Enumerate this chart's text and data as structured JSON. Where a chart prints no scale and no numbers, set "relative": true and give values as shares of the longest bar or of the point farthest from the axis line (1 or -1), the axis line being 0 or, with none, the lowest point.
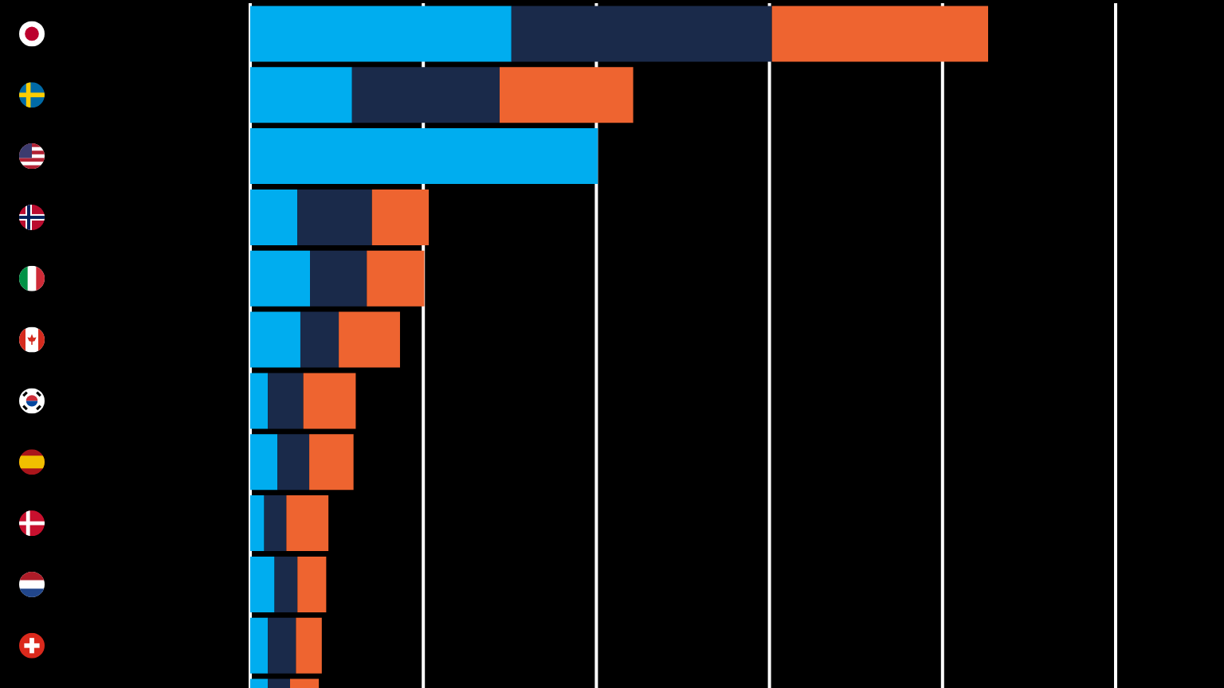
{
  "chart_data": {
    "type": "bar",
    "orientation": "horizontal",
    "stacked": true,
    "relative": true,
    "grid": "x",
    "categories": [
      null,
      null,
      null,
      null,
      null,
      null,
      null,
      null,
      null,
      null,
      null,
      null
    ],
    "series": [
      {
        "color": "#00adef",
        "values": [
          0.354,
          0.138,
          0.471,
          0.064,
          0.081,
          0.068,
          0.024,
          0.037,
          0.019,
          0.033,
          0.024,
          0.024
        ]
      },
      {
        "color": "#1a2a4a",
        "values": [
          0.353,
          0.2,
          null,
          0.101,
          0.077,
          0.052,
          0.048,
          0.043,
          0.03,
          0.031,
          0.038,
          0.03
        ]
      },
      {
        "color": "#ee6430",
        "values": [
          0.293,
          0.181,
          null,
          0.077,
          0.078,
          0.083,
          0.071,
          0.06,
          0.057,
          0.039,
          0.035,
          0.039
        ]
      }
    ]
  }
}
